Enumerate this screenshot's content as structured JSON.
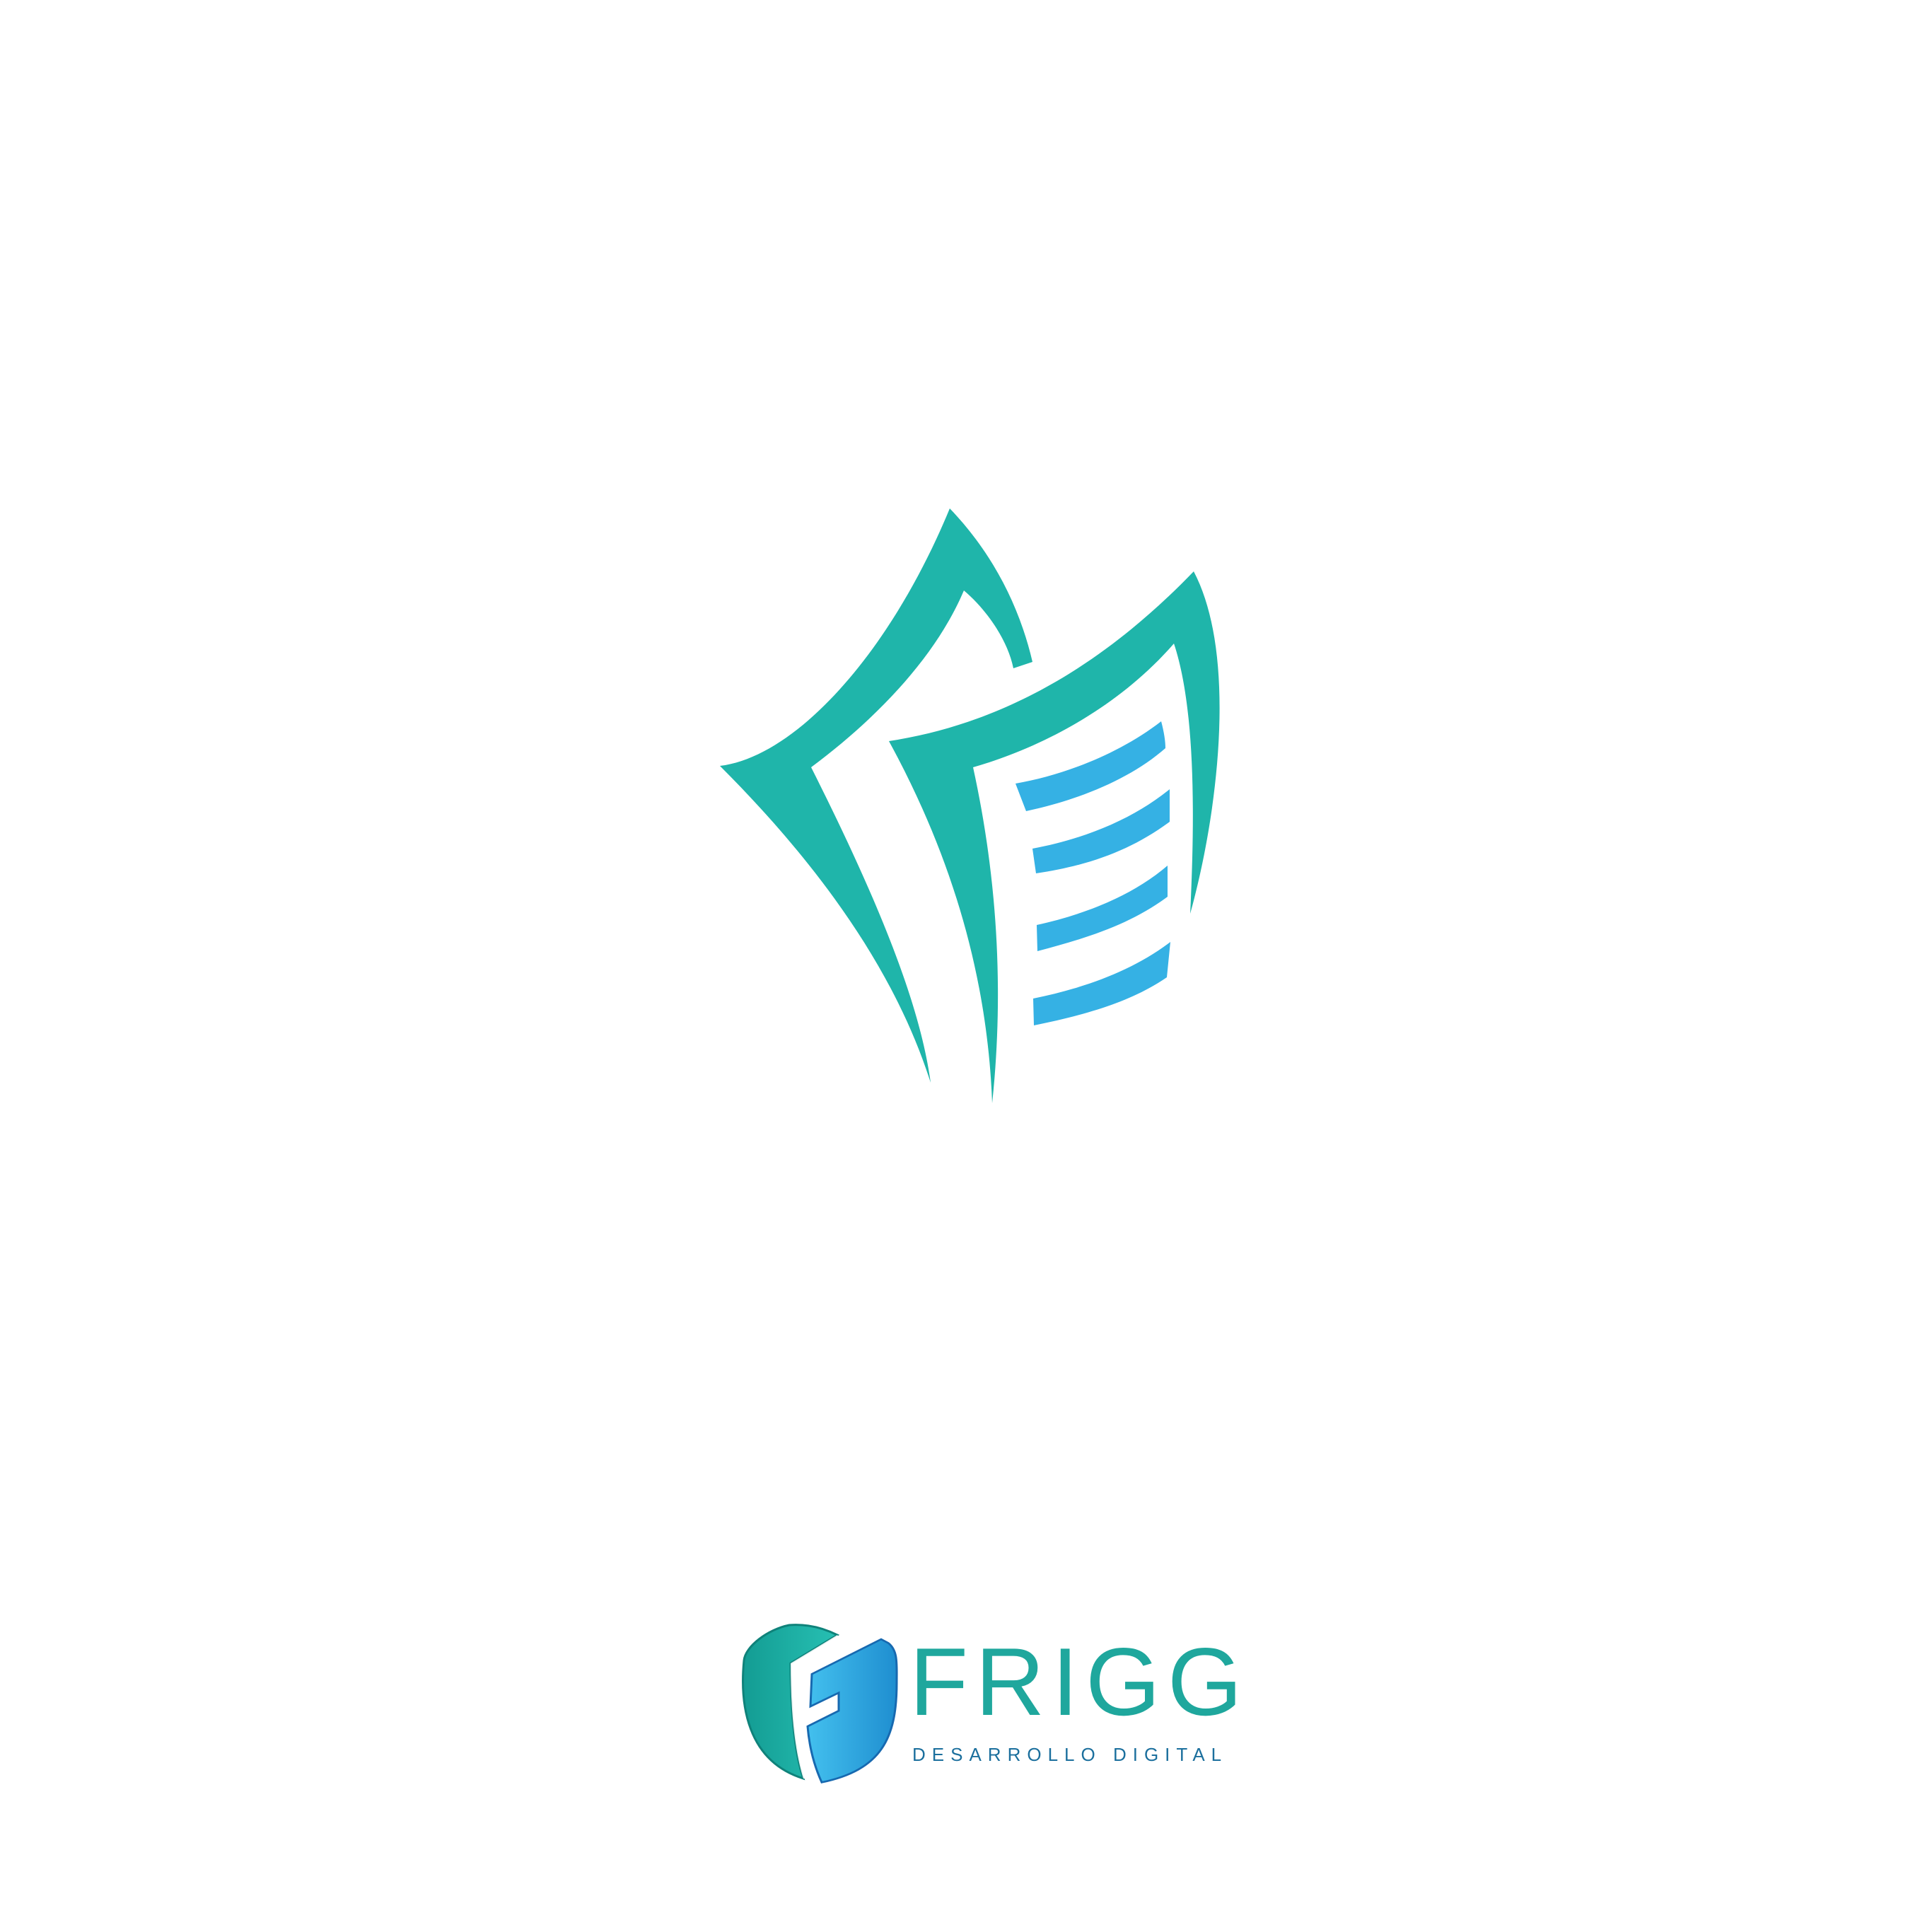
{
  "brand": {
    "name": "FRIGG",
    "tagline": "DESARROLLO DIGITAL"
  },
  "colors": {
    "background": "#ffffff",
    "teal": "#1fb5aa",
    "blue": "#35b1e4",
    "tagline": "#1b6f9d"
  },
  "icons": {
    "main": "document-pages-icon",
    "brand": "shield-f-icon"
  }
}
